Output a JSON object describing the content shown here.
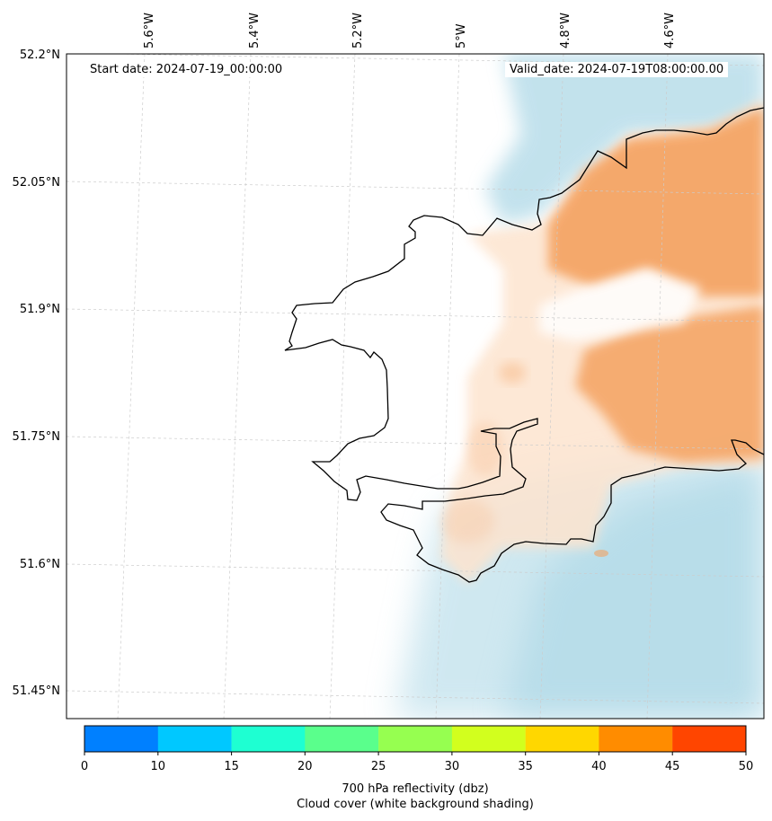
{
  "map": {
    "start_date_label": "Start date: 2024-07-19_00:00:00",
    "valid_date_label": "Valid_date: 2024-07-19T08:00:00.00",
    "longitude_labels": [
      "5.6°W",
      "5.4°W",
      "5.2°W",
      "5°W",
      "4.8°W",
      "4.6°W"
    ],
    "latitude_labels": [
      "52.2°N",
      "52.05°N",
      "51.9°N",
      "51.75°N",
      "51.6°N",
      "51.45°N"
    ],
    "colors": {
      "reflectivity_fill": "#f4a261",
      "reflectivity_light": "#fde4cf",
      "cloud_blue": "#a9d6e5",
      "coastline": "#000000",
      "gridline": "#cccccc"
    }
  },
  "colorbar": {
    "ticks": [
      "0",
      "10",
      "15",
      "20",
      "25",
      "30",
      "35",
      "40",
      "45",
      "50"
    ],
    "colors": [
      "#0080ff",
      "#00c8ff",
      "#1effd2",
      "#5aff8c",
      "#96ff50",
      "#d2ff1e",
      "#ffd700",
      "#ff8c00",
      "#ff4500"
    ],
    "title_line1": "700 hPa reflectivity (dbz)",
    "title_line2": "Cloud cover (white background shading)"
  }
}
